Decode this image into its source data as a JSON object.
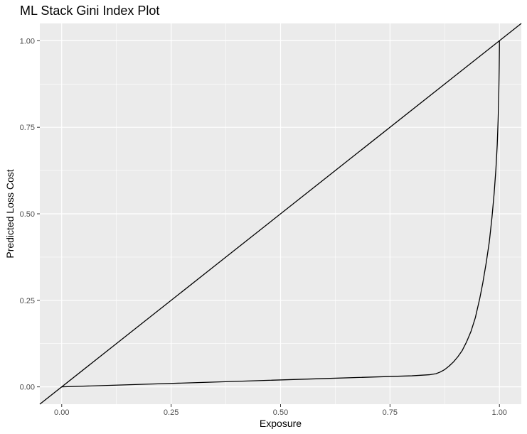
{
  "chart_data": {
    "type": "line",
    "title": "ML Stack Gini Index Plot",
    "xlabel": "Exposure",
    "ylabel": "Predicted Loss Cost",
    "xlim": [
      -0.05,
      1.05
    ],
    "ylim": [
      -0.05,
      1.05
    ],
    "x_ticks": [
      0,
      0.25,
      0.5,
      0.75,
      1
    ],
    "x_tick_labels": [
      "0.00",
      "0.25",
      "0.50",
      "0.75",
      "1.00"
    ],
    "y_ticks": [
      0,
      0.25,
      0.5,
      0.75,
      1
    ],
    "y_tick_labels": [
      "0.00",
      "0.25",
      "0.50",
      "0.75",
      "1.00"
    ],
    "grid": true,
    "background": "#ebebeb",
    "grid_color": "#ffffff",
    "line_color": "#000000",
    "reference_line": {
      "slope": 1,
      "intercept": 0
    },
    "series": [
      {
        "x": [
          0.0,
          0.2,
          0.4,
          0.6,
          0.8,
          0.84,
          0.855,
          0.865,
          0.875,
          0.885,
          0.895,
          0.905,
          0.915,
          0.925,
          0.935,
          0.945,
          0.955,
          0.962,
          0.97,
          0.977,
          0.983,
          0.988,
          0.992,
          0.995,
          0.997,
          0.9985,
          0.9995,
          1.0,
          1.0
        ],
        "y": [
          0.0,
          0.008,
          0.016,
          0.024,
          0.032,
          0.035,
          0.038,
          0.043,
          0.05,
          0.06,
          0.072,
          0.087,
          0.105,
          0.13,
          0.16,
          0.2,
          0.255,
          0.3,
          0.36,
          0.42,
          0.49,
          0.56,
          0.63,
          0.7,
          0.77,
          0.84,
          0.92,
          0.98,
          1.0
        ]
      }
    ]
  }
}
